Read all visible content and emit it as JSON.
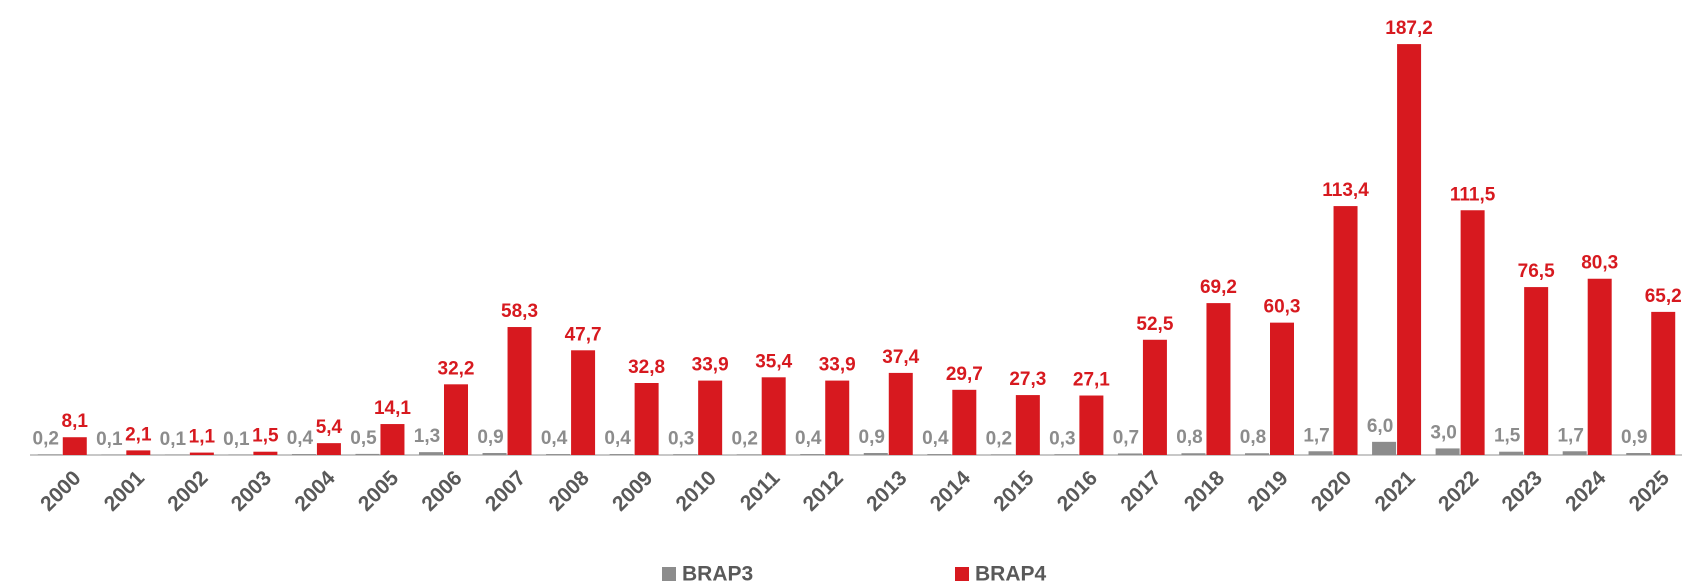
{
  "chart_data": {
    "type": "bar",
    "categories": [
      "2000",
      "2001",
      "2002",
      "2003",
      "2004",
      "2005",
      "2006",
      "2007",
      "2008",
      "2009",
      "2010",
      "2011",
      "2012",
      "2013",
      "2014",
      "2015",
      "2016",
      "2017",
      "2018",
      "2019",
      "2020",
      "2021",
      "2022",
      "2023",
      "2024",
      "2025"
    ],
    "series": [
      {
        "name": "BRAP3",
        "color": "#8c8c8c",
        "values": [
          0.2,
          0.1,
          0.1,
          0.1,
          0.4,
          0.5,
          1.3,
          0.9,
          0.4,
          0.4,
          0.3,
          0.2,
          0.4,
          0.9,
          0.4,
          0.2,
          0.3,
          0.7,
          0.8,
          0.8,
          1.7,
          6.0,
          3.0,
          1.5,
          1.7,
          0.9
        ],
        "value_labels": [
          "0,2",
          "0,1",
          "0,1",
          "0,1",
          "0,4",
          "0,5",
          "1,3",
          "0,9",
          "0,4",
          "0,4",
          "0,3",
          "0,2",
          "0,4",
          "0,9",
          "0,4",
          "0,2",
          "0,3",
          "0,7",
          "0,8",
          "0,8",
          "1,7",
          "6,0",
          "3,0",
          "1,5",
          "1,7",
          "0,9"
        ]
      },
      {
        "name": "BRAP4",
        "color": "#d7191f",
        "values": [
          8.1,
          2.1,
          1.1,
          1.5,
          5.4,
          14.1,
          32.2,
          58.3,
          47.7,
          32.8,
          33.9,
          35.4,
          33.9,
          37.4,
          29.7,
          27.3,
          27.1,
          52.5,
          69.2,
          60.3,
          113.4,
          187.2,
          111.5,
          76.5,
          80.3,
          65.2
        ],
        "value_labels": [
          "8,1",
          "2,1",
          "1,1",
          "1,5",
          "5,4",
          "14,1",
          "32,2",
          "58,3",
          "47,7",
          "32,8",
          "33,9",
          "35,4",
          "33,9",
          "37,4",
          "29,7",
          "27,3",
          "27,1",
          "52,5",
          "69,2",
          "60,3",
          "113,4",
          "187,2",
          "111,5",
          "76,5",
          "80,3",
          "65,2"
        ]
      }
    ],
    "ylim": [
      0,
      200
    ],
    "legend": "bottom"
  }
}
